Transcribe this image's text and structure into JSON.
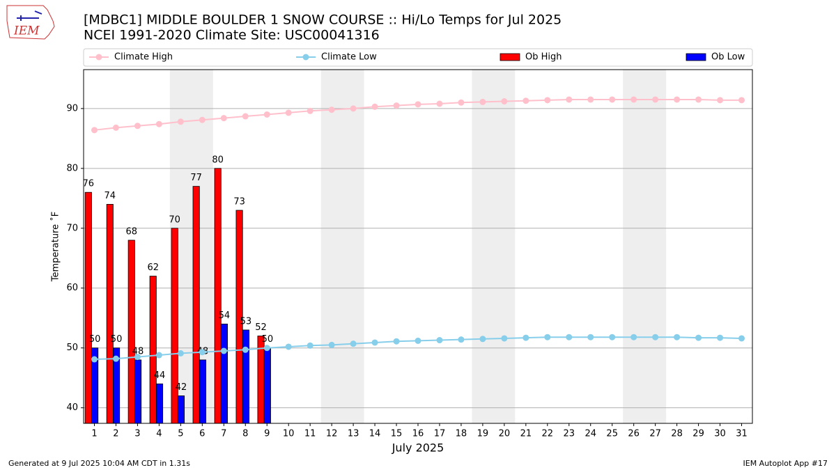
{
  "logo": "IEM",
  "footer": {
    "left": "Generated at 9 Jul 2025 10:04 AM CDT in 1.31s",
    "right": "IEM Autoplot App #17"
  },
  "chart_data": {
    "type": "bar-line",
    "title": "[MDBC1] MIDDLE BOULDER 1 SNOW COURSE :: Hi/Lo Temps for Jul 2025",
    "subtitle": "NCEI 1991-2020 Climate Site: USC00041316",
    "xlabel": "July 2025",
    "ylabel": "Temperature ˚F",
    "x": [
      1,
      2,
      3,
      4,
      5,
      6,
      7,
      8,
      9,
      10,
      11,
      12,
      13,
      14,
      15,
      16,
      17,
      18,
      19,
      20,
      21,
      22,
      23,
      24,
      25,
      26,
      27,
      28,
      29,
      30,
      31
    ],
    "series": [
      {
        "name": "Climate High",
        "kind": "line",
        "color": "#ffc0cb",
        "values": [
          86.4,
          86.8,
          87.1,
          87.4,
          87.8,
          88.1,
          88.4,
          88.7,
          89.0,
          89.3,
          89.6,
          89.8,
          90.0,
          90.3,
          90.5,
          90.7,
          90.8,
          91.0,
          91.1,
          91.2,
          91.3,
          91.4,
          91.5,
          91.5,
          91.5,
          91.5,
          91.5,
          91.5,
          91.5,
          91.4,
          91.4
        ]
      },
      {
        "name": "Climate Low",
        "kind": "line",
        "color": "#87ceeb",
        "values": [
          48.1,
          48.2,
          48.5,
          48.8,
          49.1,
          49.3,
          49.5,
          49.7,
          50.0,
          50.2,
          50.4,
          50.5,
          50.7,
          50.9,
          51.1,
          51.2,
          51.3,
          51.4,
          51.5,
          51.6,
          51.7,
          51.8,
          51.8,
          51.8,
          51.8,
          51.8,
          51.8,
          51.8,
          51.7,
          51.7,
          51.6
        ]
      },
      {
        "name": "Ob High",
        "kind": "bar",
        "color": "#ff0000",
        "x": [
          1,
          2,
          3,
          4,
          5,
          6,
          7,
          8,
          9
        ],
        "values": [
          76,
          74,
          68,
          62,
          70,
          77,
          80,
          73,
          52
        ]
      },
      {
        "name": "Ob Low",
        "kind": "bar",
        "color": "#0000ff",
        "x": [
          1,
          2,
          3,
          4,
          5,
          6,
          7,
          8,
          9
        ],
        "values": [
          50,
          50,
          48,
          44,
          42,
          48,
          54,
          53,
          50
        ]
      }
    ],
    "shaded_ranges": [
      [
        4.5,
        6.5
      ],
      [
        11.5,
        13.5
      ],
      [
        18.5,
        20.5
      ],
      [
        25.5,
        27.5
      ]
    ],
    "xlim": [
      0.5,
      31.5
    ],
    "ylim": [
      37.4,
      96.5
    ],
    "xticks": [
      1,
      2,
      3,
      4,
      5,
      6,
      7,
      8,
      9,
      10,
      11,
      12,
      13,
      14,
      15,
      16,
      17,
      18,
      19,
      20,
      21,
      22,
      23,
      24,
      25,
      26,
      27,
      28,
      29,
      30,
      31
    ],
    "yticks": [
      40,
      50,
      60,
      70,
      80,
      90
    ],
    "grid": "y",
    "legend": "top"
  }
}
